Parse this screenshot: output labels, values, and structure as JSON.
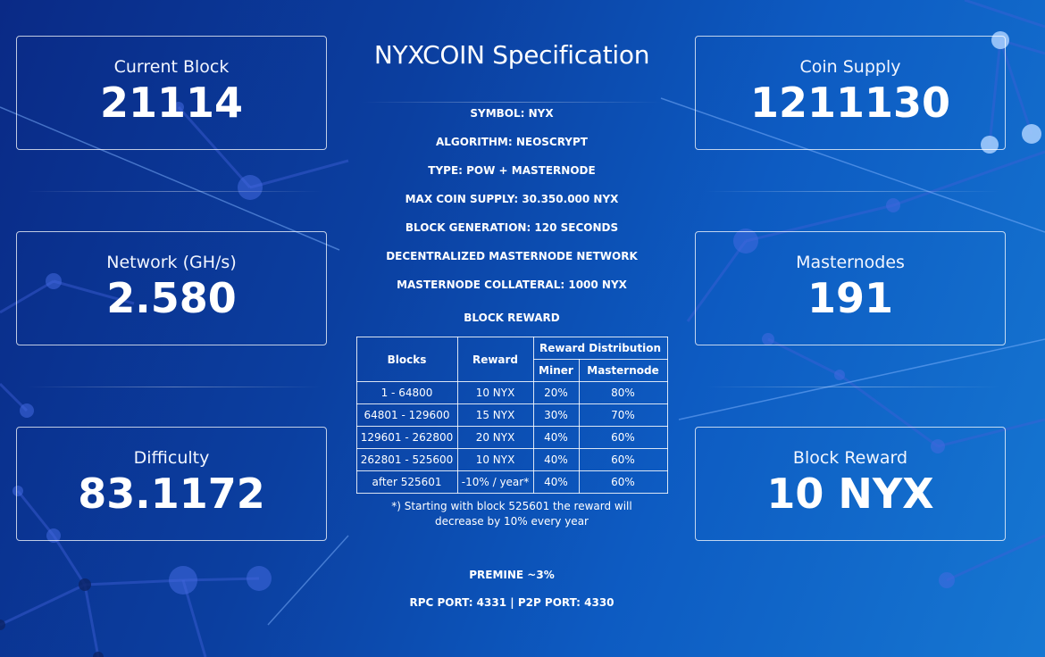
{
  "stats": {
    "current_block": {
      "label": "Current Block",
      "value": "21114"
    },
    "network": {
      "label": "Network (GH/s)",
      "value": "2.580"
    },
    "difficulty": {
      "label": "Difficulty",
      "value": "83.1172"
    },
    "coin_supply": {
      "label": "Coin Supply",
      "value": "1211130"
    },
    "masternodes": {
      "label": "Masternodes",
      "value": "191"
    },
    "block_reward": {
      "label": "Block Reward",
      "value": "10 NYX"
    }
  },
  "spec": {
    "title": "NYXCOIN Specification",
    "lines": [
      "SYMBOL: NYX",
      "ALGORITHM: NEOSCRYPT",
      "TYPE: POW + MASTERNODE",
      "MAX COIN SUPPLY: 30.350.000 NYX",
      "BLOCK GENERATION: 120 SECONDS",
      "DECENTRALIZED MASTERNODE NETWORK",
      "MASTERNODE COLLATERAL: 1000 NYX"
    ],
    "reward_heading": "BLOCK REWARD",
    "table": {
      "headers": {
        "blocks": "Blocks",
        "reward": "Reward",
        "distribution": "Reward Distribution",
        "miner": "Miner",
        "masternode": "Masternode"
      },
      "rows": [
        {
          "blocks": "1 - 64800",
          "reward": "10 NYX",
          "miner": "20%",
          "masternode": "80%"
        },
        {
          "blocks": "64801 - 129600",
          "reward": "15 NYX",
          "miner": "30%",
          "masternode": "70%"
        },
        {
          "blocks": "129601 - 262800",
          "reward": "20 NYX",
          "miner": "40%",
          "masternode": "60%"
        },
        {
          "blocks": "262801 - 525600",
          "reward": "10 NYX",
          "miner": "40%",
          "masternode": "60%"
        },
        {
          "blocks": "after 525601",
          "reward": "-10% / year*",
          "miner": "40%",
          "masternode": "60%"
        }
      ]
    },
    "footnote_line1": "*) Starting with block 525601 the reward will",
    "footnote_line2": "decrease by 10% every year",
    "premine": "PREMINE ~3%",
    "ports": "RPC PORT: 4331 | P2P PORT: 4330"
  },
  "colors": {
    "background_start": "#0a2a86",
    "background_end": "#1677d2",
    "border": "#ffffff",
    "text": "#ffffff"
  }
}
